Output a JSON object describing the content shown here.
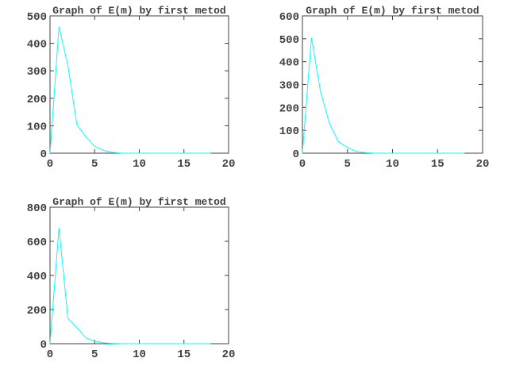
{
  "chart_data": [
    {
      "type": "line",
      "title": "Graph of E(m) by first metod",
      "xlabel": "",
      "ylabel": "",
      "xlim": [
        0,
        20
      ],
      "ylim": [
        0,
        500
      ],
      "xticks": [
        0,
        5,
        10,
        15,
        20
      ],
      "yticks": [
        0,
        100,
        200,
        300,
        400,
        500
      ],
      "grid": false,
      "line_color": "#00ffff",
      "series": [
        {
          "x": [
            0,
            1,
            2,
            3,
            4,
            5,
            6,
            7,
            8,
            9,
            10,
            11,
            12,
            13,
            14,
            15,
            16,
            17,
            18
          ],
          "y": [
            0,
            460,
            320,
            105,
            60,
            25,
            10,
            3,
            0,
            0,
            0,
            0,
            0,
            0,
            0,
            0,
            0,
            0,
            0
          ]
        }
      ]
    },
    {
      "type": "line",
      "title": "Graph of E(m) by first metod",
      "xlabel": "",
      "ylabel": "",
      "xlim": [
        0,
        20
      ],
      "ylim": [
        0,
        600
      ],
      "xticks": [
        0,
        5,
        10,
        15,
        20
      ],
      "yticks": [
        0,
        100,
        200,
        300,
        400,
        500,
        600
      ],
      "grid": false,
      "line_color": "#00ffff",
      "series": [
        {
          "x": [
            0,
            1,
            2,
            3,
            4,
            5,
            6,
            7,
            8,
            9,
            10,
            11,
            12,
            13,
            14,
            15,
            16,
            17,
            18
          ],
          "y": [
            0,
            505,
            270,
            130,
            50,
            25,
            8,
            2,
            0,
            0,
            0,
            0,
            0,
            0,
            0,
            0,
            0,
            0,
            0
          ]
        }
      ]
    },
    {
      "type": "line",
      "title": "Graph of E(m) by first metod",
      "xlabel": "",
      "ylabel": "",
      "xlim": [
        0,
        20
      ],
      "ylim": [
        0,
        800
      ],
      "xticks": [
        0,
        5,
        10,
        15,
        20
      ],
      "yticks": [
        0,
        200,
        400,
        600,
        800
      ],
      "grid": false,
      "line_color": "#00ffff",
      "series": [
        {
          "x": [
            0,
            1,
            2,
            3,
            4,
            5,
            6,
            7,
            8,
            9,
            10,
            11,
            12,
            13,
            14,
            15,
            16,
            17,
            18
          ],
          "y": [
            0,
            680,
            150,
            95,
            35,
            15,
            5,
            2,
            0,
            0,
            0,
            0,
            0,
            0,
            0,
            0,
            0,
            0,
            0
          ]
        }
      ]
    }
  ]
}
